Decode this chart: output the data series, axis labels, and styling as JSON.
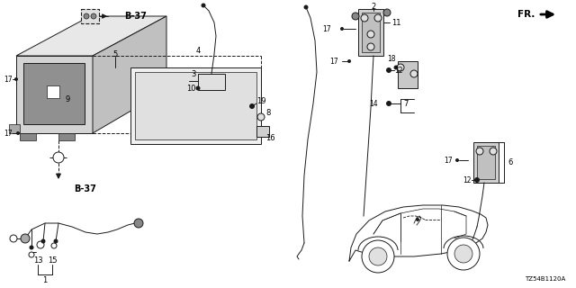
{
  "bg_color": "#ffffff",
  "fig_width": 6.4,
  "fig_height": 3.2,
  "dpi": 100,
  "line_color": "#1a1a1a",
  "lw": 0.7,
  "diagram_code": "TZ54B1120A",
  "parts": {
    "B37": "B-37",
    "FR": "FR.",
    "labels": [
      "1",
      "2",
      "3",
      "4",
      "5",
      "6",
      "7",
      "8",
      "9",
      "10",
      "11",
      "12",
      "13",
      "14",
      "15",
      "16",
      "17",
      "18",
      "19"
    ]
  }
}
